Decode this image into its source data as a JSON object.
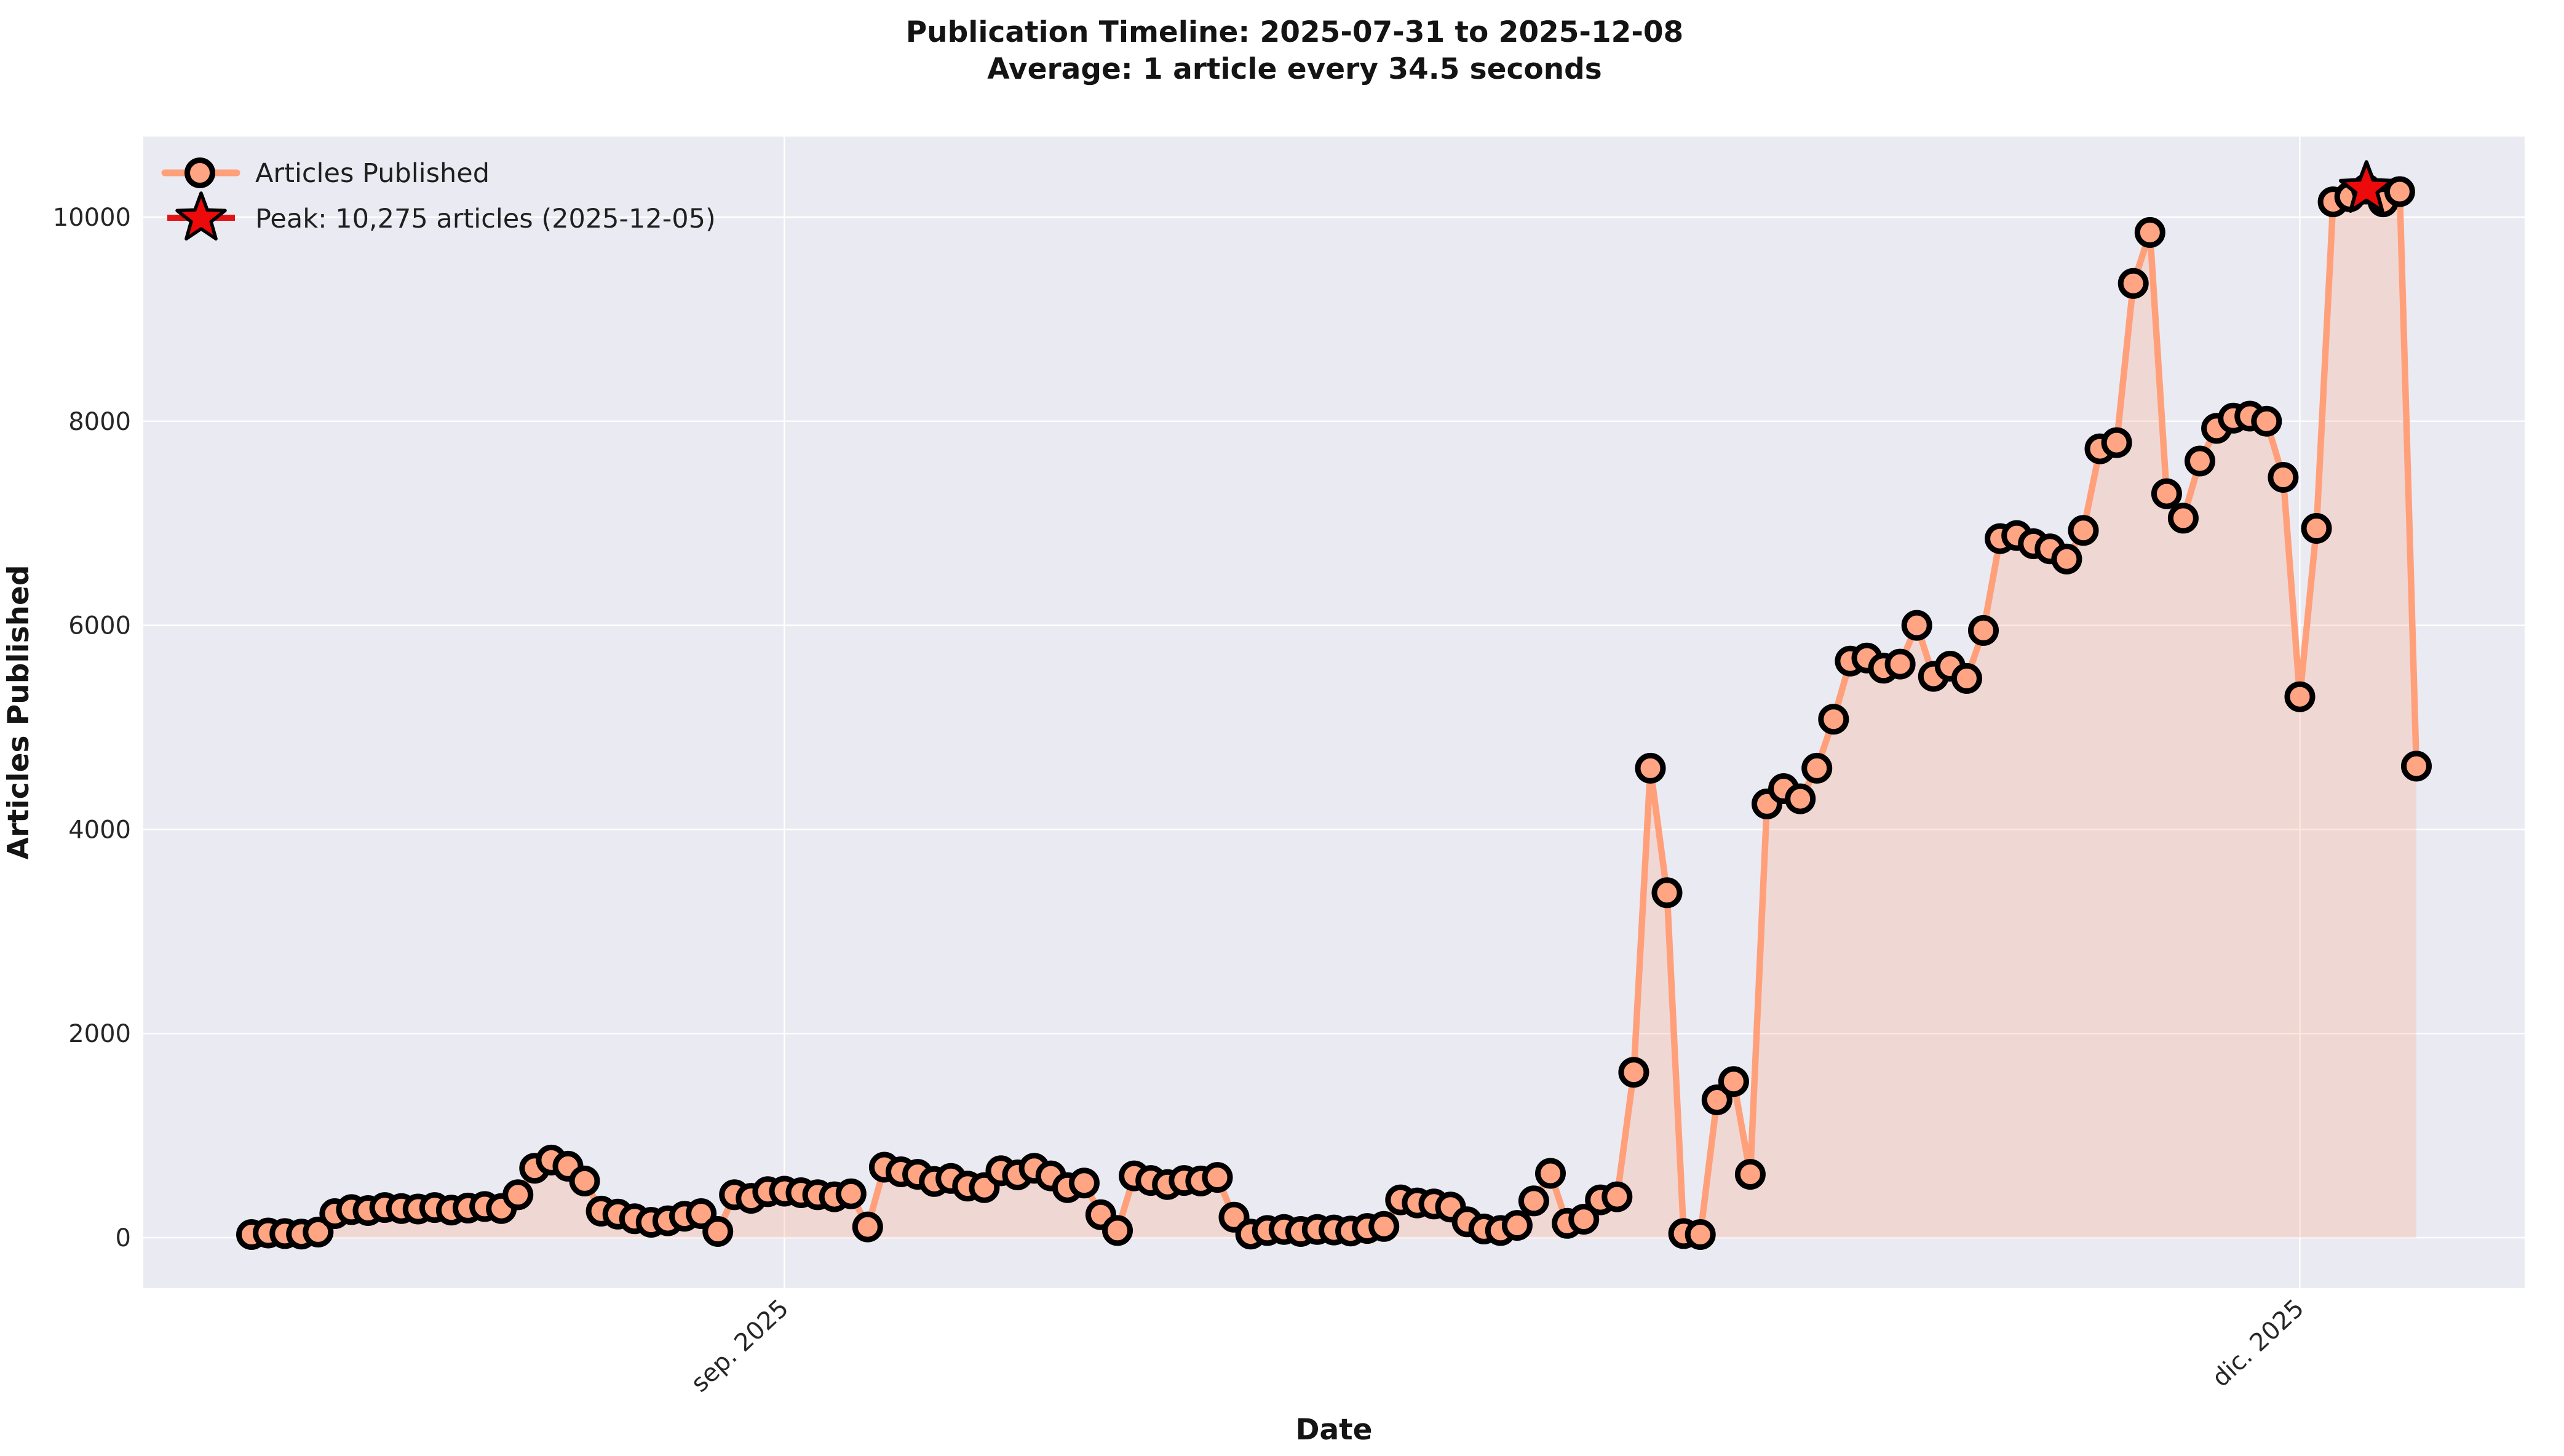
{
  "chart_data": {
    "type": "area",
    "title": "Publication Timeline: 2025-07-31 to 2025-12-08",
    "subtitle": "Average: 1 article every 34.5 seconds",
    "xlabel": "Date",
    "ylabel": "Articles Published",
    "start_date": "2025-07-31",
    "end_date": "2025-12-08",
    "frequency": "daily",
    "grid": true,
    "legend_position": "upper left",
    "ylim": [
      -490,
      10790
    ],
    "y_ticks": [
      {
        "label": "0",
        "value": 0
      },
      {
        "label": "2000",
        "value": 2000
      },
      {
        "label": "4000",
        "value": 4000
      },
      {
        "label": "6000",
        "value": 6000
      },
      {
        "label": "8000",
        "value": 8000
      },
      {
        "label": "10000",
        "value": 10000
      }
    ],
    "x_ticks": [
      {
        "label": "sep. 2025",
        "day_index": 32
      },
      {
        "label": "dic. 2025",
        "day_index": 123
      }
    ],
    "series": [
      {
        "name": "Articles Published",
        "values": [
          30,
          45,
          40,
          35,
          55,
          235,
          275,
          265,
          295,
          285,
          280,
          295,
          270,
          290,
          305,
          285,
          420,
          680,
          760,
          700,
          555,
          260,
          230,
          185,
          150,
          165,
          210,
          235,
          60,
          420,
          385,
          450,
          455,
          440,
          420,
          400,
          430,
          105,
          690,
          645,
          620,
          550,
          580,
          505,
          490,
          655,
          615,
          680,
          605,
          490,
          535,
          225,
          70,
          605,
          560,
          520,
          560,
          555,
          590,
          200,
          35,
          70,
          80,
          60,
          80,
          75,
          65,
          90,
          110,
          370,
          340,
          330,
          300,
          155,
          85,
          70,
          120,
          360,
          630,
          140,
          180,
          370,
          400,
          1620,
          4600,
          3380,
          40,
          30,
          1350,
          1530,
          620,
          4250,
          4400,
          4300,
          4600,
          5080,
          5650,
          5680,
          5580,
          5620,
          6000,
          5500,
          5600,
          5480,
          5950,
          6850,
          6880,
          6800,
          6750,
          6650,
          6930,
          7730,
          7790,
          9350,
          9850,
          7290,
          7050,
          7610,
          7930,
          8030,
          8050,
          8000,
          7450,
          5300,
          6950,
          10150,
          10200,
          10275,
          10150,
          10250,
          4620
        ]
      }
    ],
    "peak": {
      "label": "Peak: 10,275 articles (2025-12-05)",
      "value": 10275,
      "date": "2025-12-05",
      "index": 127
    }
  },
  "colors": {
    "plot_background": "#EAEAF2",
    "grid": "#FFFFFF",
    "line": "#FFA07A",
    "area_fill": "rgba(255,160,122,0.25)",
    "marker_fill": "#FFA583",
    "marker_edge": "#000000",
    "peak_star_fill": "#EC0A0A",
    "peak_legend_line": "#E21414",
    "text": "#262626"
  }
}
